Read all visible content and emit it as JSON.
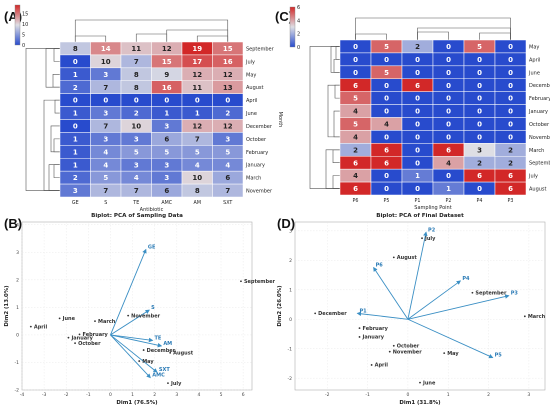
{
  "chart_data": [
    {
      "panel": "(A)",
      "type": "heatmap",
      "xlabel": "Antibiotic",
      "ylabel": "Month",
      "columns": [
        "GE",
        "S",
        "TE",
        "AMC",
        "AM",
        "SXT"
      ],
      "rows": [
        "September",
        "July",
        "May",
        "August",
        "April",
        "June",
        "December",
        "October",
        "February",
        "January",
        "March",
        "November"
      ],
      "values": [
        [
          8,
          14,
          11,
          12,
          19,
          15
        ],
        [
          0,
          10,
          7,
          15,
          17,
          16
        ],
        [
          1,
          3,
          8,
          9,
          12,
          12
        ],
        [
          2,
          7,
          8,
          16,
          11,
          13
        ],
        [
          0,
          0,
          0,
          0,
          0,
          0
        ],
        [
          1,
          3,
          2,
          1,
          1,
          2
        ],
        [
          0,
          7,
          10,
          3,
          12,
          12
        ],
        [
          1,
          3,
          3,
          6,
          7,
          3
        ],
        [
          1,
          4,
          5,
          5,
          5,
          5
        ],
        [
          1,
          4,
          3,
          3,
          4,
          4
        ],
        [
          2,
          5,
          4,
          3,
          10,
          6
        ],
        [
          3,
          7,
          7,
          6,
          8,
          7
        ]
      ],
      "colorbar_ticks": [
        "15",
        "10",
        "5",
        "0"
      ],
      "vmax": 19
    },
    {
      "panel": "(C)",
      "type": "heatmap",
      "xlabel": "Sampling Point",
      "ylabel": "Month",
      "columns": [
        "P6",
        "P5",
        "P1",
        "P2",
        "P4",
        "P3"
      ],
      "rows": [
        "May",
        "April",
        "June",
        "December",
        "February",
        "January",
        "October",
        "November",
        "March",
        "September",
        "July",
        "August"
      ],
      "values": [
        [
          0,
          5,
          2,
          0,
          5,
          0
        ],
        [
          0,
          0,
          0,
          0,
          0,
          0
        ],
        [
          0,
          5,
          0,
          0,
          0,
          0
        ],
        [
          6,
          0,
          6,
          0,
          0,
          0
        ],
        [
          5,
          0,
          0,
          0,
          0,
          0
        ],
        [
          4,
          0,
          0,
          0,
          0,
          0
        ],
        [
          5,
          4,
          0,
          0,
          0,
          0
        ],
        [
          4,
          0,
          0,
          0,
          0,
          0
        ],
        [
          2,
          6,
          0,
          6,
          3,
          2
        ],
        [
          6,
          6,
          0,
          4,
          2,
          2
        ],
        [
          4,
          0,
          1,
          0,
          6,
          6
        ],
        [
          6,
          0,
          0,
          1,
          0,
          6
        ]
      ],
      "colorbar_ticks": [
        "6",
        "4",
        "2",
        "0"
      ],
      "vmax": 6
    },
    {
      "panel": "(B)",
      "type": "scatter",
      "title": "Biplot: PCA of Sampling Data",
      "xlabel": "Dim1 (76.5%)",
      "ylabel": "Dim2 (13.0%)",
      "xlim": [
        -4,
        6.4
      ],
      "ylim": [
        -2,
        4.1
      ],
      "xticks": [
        "-4",
        "-3",
        "-2",
        "-1",
        "0",
        "1",
        "2",
        "3",
        "4",
        "5",
        "6"
      ],
      "yticks": [
        "4",
        "3",
        "2",
        "1",
        "0",
        "-1",
        "-2"
      ],
      "points": [
        {
          "label": "September",
          "x": 5.9,
          "y": 1.95
        },
        {
          "label": "June",
          "x": -2.3,
          "y": 0.6
        },
        {
          "label": "April",
          "x": -3.6,
          "y": 0.3
        },
        {
          "label": "November",
          "x": 0.8,
          "y": 0.7
        },
        {
          "label": "March",
          "x": -0.7,
          "y": 0.5
        },
        {
          "label": "February",
          "x": -1.4,
          "y": 0.02
        },
        {
          "label": "January",
          "x": -1.9,
          "y": -0.1
        },
        {
          "label": "October",
          "x": -1.6,
          "y": -0.3
        },
        {
          "label": "December",
          "x": 1.5,
          "y": -0.55
        },
        {
          "label": "August",
          "x": 2.7,
          "y": -0.65
        },
        {
          "label": "May",
          "x": 1.3,
          "y": -0.95
        },
        {
          "label": "July",
          "x": 2.6,
          "y": -1.75
        }
      ],
      "loadings": [
        {
          "label": "GE",
          "x": 1.6,
          "y": 3.1
        },
        {
          "label": "S",
          "x": 1.75,
          "y": 0.9
        },
        {
          "label": "TE",
          "x": 1.9,
          "y": -0.2
        },
        {
          "label": "AM",
          "x": 2.3,
          "y": -0.4
        },
        {
          "label": "AMC",
          "x": 1.8,
          "y": -1.55
        },
        {
          "label": "SXT",
          "x": 2.1,
          "y": -1.35
        }
      ]
    },
    {
      "panel": "(D)",
      "type": "scatter",
      "title": "Biplot: PCA of Final Dataset",
      "xlabel": "Dim1 (31.8%)",
      "ylabel": "Dim2 (26.0%)",
      "xlim": [
        -2.8,
        3.4
      ],
      "ylim": [
        -2.4,
        3.3
      ],
      "xticks": [
        "-2",
        "-1",
        "0",
        "1",
        "2",
        "3"
      ],
      "yticks": [
        "3",
        "2",
        "1",
        "0",
        "-1",
        "-2"
      ],
      "points": [
        {
          "label": "July",
          "x": 0.35,
          "y": 2.75
        },
        {
          "label": "August",
          "x": -0.35,
          "y": 2.1
        },
        {
          "label": "September",
          "x": 1.6,
          "y": 0.9
        },
        {
          "label": "December",
          "x": -2.3,
          "y": 0.2
        },
        {
          "label": "March",
          "x": 2.9,
          "y": 0.1
        },
        {
          "label": "February",
          "x": -1.2,
          "y": -0.3
        },
        {
          "label": "January",
          "x": -1.2,
          "y": -0.6
        },
        {
          "label": "October",
          "x": -0.35,
          "y": -0.9
        },
        {
          "label": "November",
          "x": -0.45,
          "y": -1.1
        },
        {
          "label": "May",
          "x": 0.9,
          "y": -1.15
        },
        {
          "label": "April",
          "x": -0.9,
          "y": -1.55
        },
        {
          "label": "June",
          "x": 0.3,
          "y": -2.15
        }
      ],
      "loadings": [
        {
          "label": "P2",
          "x": 0.45,
          "y": 2.95
        },
        {
          "label": "P6",
          "x": -0.85,
          "y": 1.75
        },
        {
          "label": "P4",
          "x": 1.3,
          "y": 1.3
        },
        {
          "label": "P3",
          "x": 2.5,
          "y": 0.8
        },
        {
          "label": "P1",
          "x": -1.25,
          "y": 0.2
        },
        {
          "label": "P5",
          "x": 2.1,
          "y": -1.3
        }
      ]
    }
  ]
}
